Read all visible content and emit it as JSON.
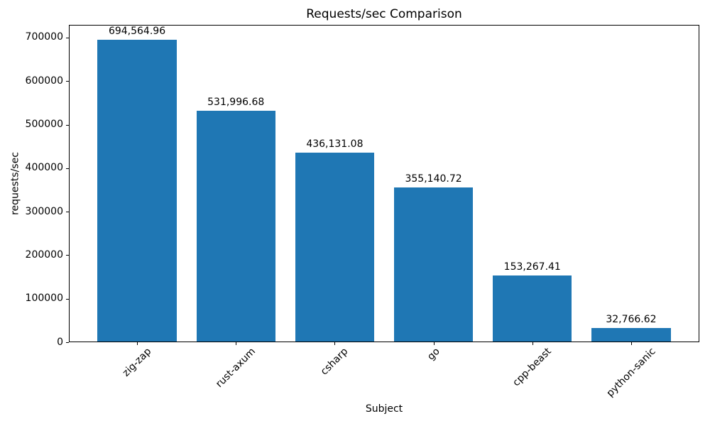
{
  "chart_data": {
    "type": "bar",
    "title": "Requests/sec Comparison",
    "xlabel": "Subject",
    "ylabel": "requests/sec",
    "categories": [
      "zig-zap",
      "rust-axum",
      "csharp",
      "go",
      "cpp-beast",
      "python-sanic"
    ],
    "values": [
      694564.96,
      531996.68,
      436131.08,
      355140.72,
      153267.41,
      32766.62
    ],
    "value_labels": [
      "694,564.96",
      "531,996.68",
      "436,131.08",
      "355,140.72",
      "153,267.41",
      "32,766.62"
    ],
    "series_name": "requests/sec",
    "yticks": [
      0,
      100000,
      200000,
      300000,
      400000,
      500000,
      600000,
      700000
    ],
    "ytick_labels": [
      "0",
      "100000",
      "200000",
      "300000",
      "400000",
      "500000",
      "600000",
      "700000"
    ],
    "ylim": [
      0,
      729293
    ],
    "x_tick_rotation": 45,
    "grid": false,
    "legend": "none",
    "bar_color": "#1f77b4",
    "text_color": "#000000",
    "background_color": "#ffffff"
  }
}
